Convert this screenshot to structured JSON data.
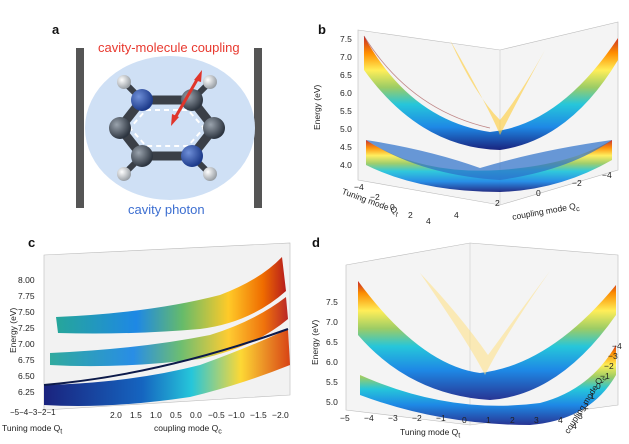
{
  "panel_labels": {
    "a": "a",
    "b": "b",
    "c": "c",
    "d": "d"
  },
  "panel_a": {
    "top_text": "cavity-molecule coupling",
    "bottom_text": "cavity photon",
    "top_color": "#e8392f",
    "bottom_color": "#3d6fd1",
    "bubble_color": "#cfe0f5",
    "mirror_color": "#555555"
  },
  "panel_b": {
    "ylabel": "Energy (eV)",
    "y_ticks": [
      "7.5",
      "7.0",
      "6.5",
      "6.0",
      "5.5",
      "5.0",
      "4.5",
      "4.0"
    ],
    "x1_label": "Tuning mode Q",
    "x1_sub": "t",
    "x1_ticks": [
      "−4",
      "−2",
      "0",
      "2",
      "4"
    ],
    "x2_label": "coupling mode Q",
    "x2_sub": "c",
    "x2_ticks": [
      "4",
      "2",
      "0",
      "−2",
      "−4"
    ]
  },
  "panel_c": {
    "ylabel": "Energy (eV)",
    "y_ticks": [
      "8.00",
      "7.75",
      "7.50",
      "7.25",
      "7.00",
      "6.75",
      "6.50",
      "6.25"
    ],
    "x1_label": "Tuning mode Q",
    "x1_sub": "t",
    "x1_ticks": "−5−4−3−2−1",
    "x2_label": "coupling mode Q",
    "x2_sub": "c",
    "x2_ticks": [
      "2.0",
      "1.5",
      "1.0",
      "0.5",
      "0.0",
      "−0.5",
      "−1.0",
      "−1.5",
      "−2.0"
    ]
  },
  "panel_d": {
    "ylabel": "Energy (eV)",
    "y_ticks": [
      "7.5",
      "7.0",
      "6.5",
      "6.0",
      "5.5",
      "5.0"
    ],
    "x1_label": "Tuning mode Q",
    "x1_sub": "t",
    "x1_ticks": [
      "−5",
      "−4",
      "−3",
      "−2",
      "−1",
      "0",
      "1",
      "2",
      "3",
      "4"
    ],
    "x2_label": "coupling mode Q",
    "x2_sub": "c",
    "x2_ticks": [
      "4",
      "3",
      "2",
      "1",
      "0",
      "−1",
      "−2",
      "−3",
      "−4"
    ]
  }
}
